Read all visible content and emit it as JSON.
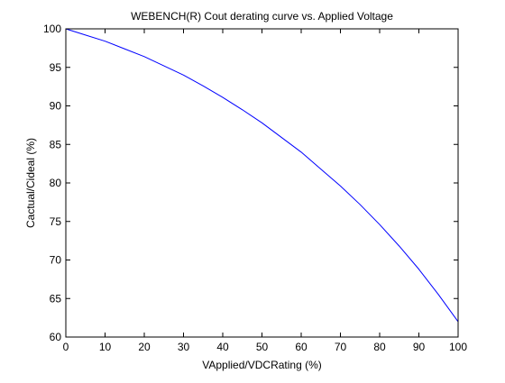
{
  "chart_data": {
    "type": "line",
    "title": "WEBENCH(R) Cout derating curve vs. Applied Voltage",
    "xlabel": "VApplied/VDCRating (%)",
    "ylabel": "Cactual/Cideal (%)",
    "xlim": [
      0,
      100
    ],
    "ylim": [
      60,
      100
    ],
    "xticks": [
      "0",
      "10",
      "20",
      "30",
      "40",
      "50",
      "60",
      "70",
      "80",
      "90",
      "100"
    ],
    "yticks": [
      "60",
      "65",
      "70",
      "75",
      "80",
      "85",
      "90",
      "95",
      "100"
    ],
    "grid": false,
    "legend": "none",
    "line_color": "#0000ff",
    "series": [
      {
        "x": [
          0,
          5,
          10,
          15,
          20,
          25,
          30,
          35,
          40,
          45,
          50,
          55,
          60,
          65,
          70,
          75,
          80,
          85,
          90,
          95,
          100
        ],
        "values": [
          100,
          99.2,
          98.4,
          97.4,
          96.4,
          95.2,
          94.0,
          92.6,
          91.1,
          89.5,
          87.8,
          85.9,
          84.0,
          81.8,
          79.6,
          77.2,
          74.6,
          71.8,
          68.8,
          65.5,
          62.0
        ]
      }
    ]
  }
}
